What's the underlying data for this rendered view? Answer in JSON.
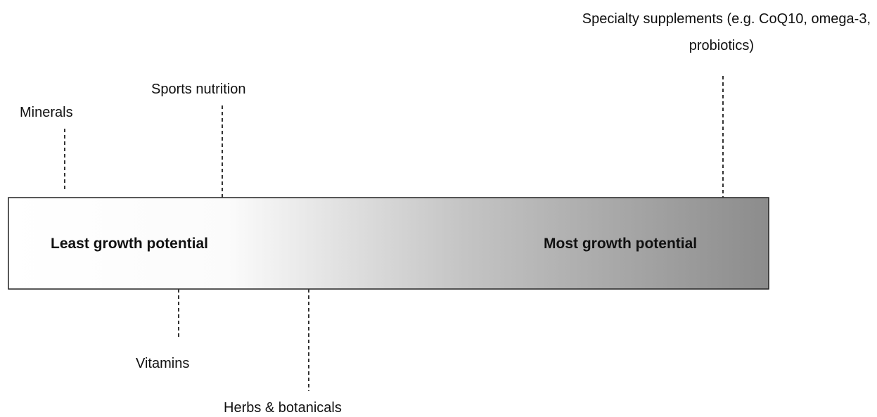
{
  "scale": {
    "left_label": "Least growth potential",
    "right_label": "Most growth potential"
  },
  "items_above": [
    {
      "label": "Minerals"
    },
    {
      "label": "Sports nutrition"
    },
    {
      "label_lines": [
        "Specialty supplements (e.g. CoQ10, omega-3,",
        "probiotics)"
      ]
    }
  ],
  "items_below": [
    {
      "label": "Vitamins"
    },
    {
      "label": "Herbs & botanicals"
    }
  ]
}
